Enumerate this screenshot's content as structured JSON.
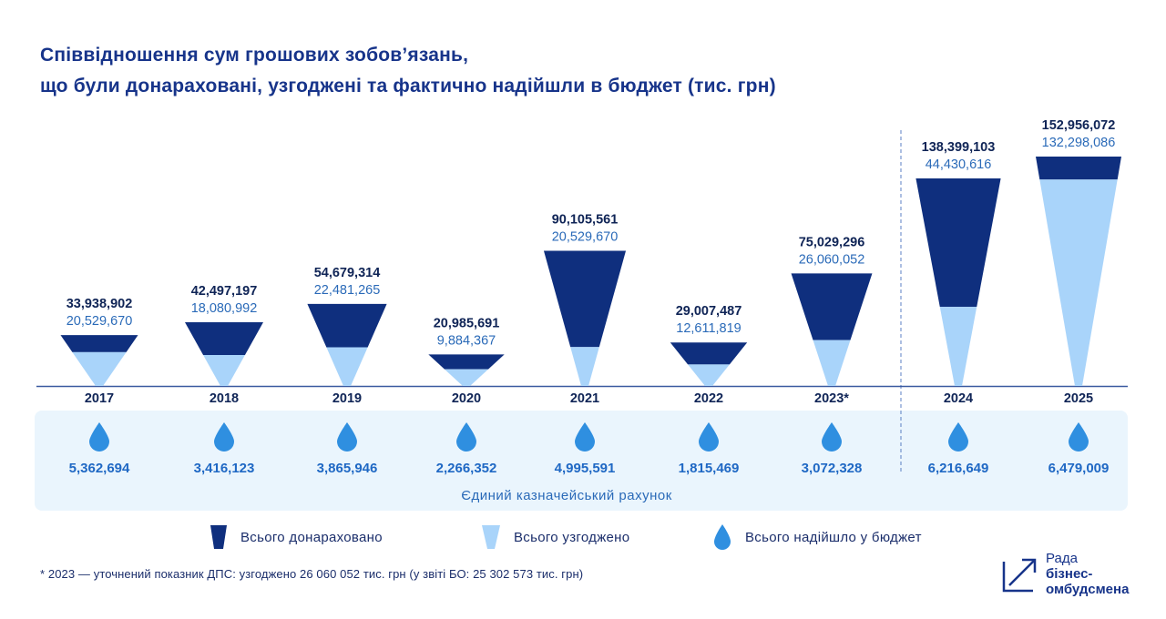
{
  "title": {
    "line1": "Співвідношення сум грошових зобов’язань,",
    "line2": "що були донараховані, узгоджені та фактично надійшли в бюджет (тис. грн)"
  },
  "chart_data": {
    "type": "bar",
    "categories": [
      "2017",
      "2018",
      "2019",
      "2020",
      "2021",
      "2022",
      "2023*",
      "2024",
      "2025"
    ],
    "series": [
      {
        "name": "Всього донараховано",
        "values": [
          33938902,
          42497197,
          54679314,
          20985691,
          90105561,
          29007487,
          75029296,
          138399103,
          152956072
        ]
      },
      {
        "name": "Всього узгоджено",
        "values": [
          20529670,
          18080992,
          22481265,
          9884367,
          20529670,
          12611819,
          26060052,
          44430616,
          132298086
        ]
      },
      {
        "name": "Всього надійшло у бюджет",
        "values": [
          5362694,
          3416123,
          3865946,
          2266352,
          4995591,
          1815469,
          3072328,
          6216649,
          6479009
        ]
      }
    ],
    "value_labels": {
      "accrued": [
        "33,938,902",
        "42,497,197",
        "54,679,314",
        "20,985,691",
        "90,105,561",
        "29,007,487",
        "75,029,296",
        "138,399,103",
        "152,956,072"
      ],
      "agreed": [
        "20,529,670",
        "18,080,992",
        "22,481,265",
        "9,884,367",
        "20,529,670",
        "12,611,819",
        "26,060,052",
        "44,430,616",
        "132,298,086"
      ],
      "received": [
        "5,362,694",
        "3,416,123",
        "3,865,946",
        "2,266,352",
        "4,995,591",
        "1,815,469",
        "3,072,328",
        "6,216,649",
        "6,479,009"
      ]
    },
    "band_label": "Єдиний казначейський рахунок",
    "legend_placement": "bottom",
    "colors": {
      "accrued": "#0f2f7e",
      "agreed": "#a9d4fa",
      "received": "#2f8fe0",
      "band": "#eaf5fd",
      "label_accrued": "#0f2456",
      "label_agreed": "#2a6ab8",
      "axis": "#3a5aa0"
    }
  },
  "legend": {
    "accrued": "Всього донараховано",
    "agreed": "Всього узгоджено",
    "received": "Всього надійшло у бюджет"
  },
  "footnote": "* 2023 — уточнений показник ДПС: узгоджено 26 060 052 тис. грн  (у звіті БО: 25 302 573 тис. грн)",
  "logo": {
    "line1_a": "Рада ",
    "line1_b": "бізнес-",
    "line2": "омбудсмена"
  }
}
